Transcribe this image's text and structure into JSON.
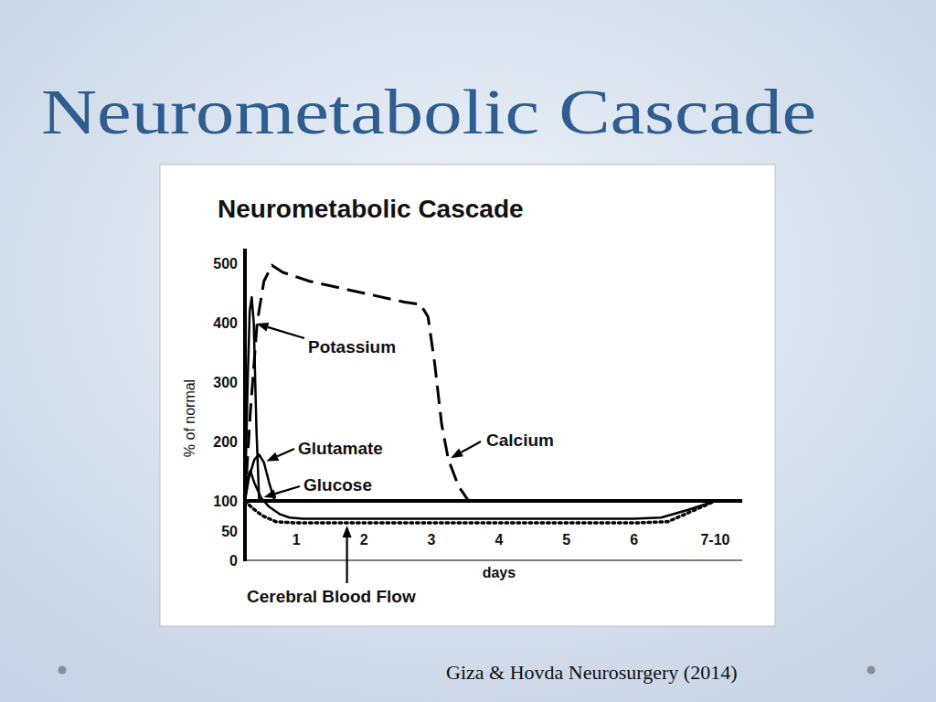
{
  "slide": {
    "title": "Neurometabolic Cascade",
    "citation": "Giza & Hovda Neurosurgery (2014)"
  },
  "chart_data": {
    "type": "line",
    "title": "Neurometabolic Cascade",
    "y_label": "% of normal",
    "x_label": "days",
    "xlim": [
      0.24,
      7.6
    ],
    "xticks": [
      1,
      2,
      3,
      4,
      5,
      6,
      {
        "value": 7.2,
        "label": "7-10"
      }
    ],
    "ylim": [
      0,
      525
    ],
    "yticks": [
      0,
      50,
      100,
      200,
      300,
      400,
      500
    ],
    "grid": false,
    "tick_labels": true,
    "baseline": 100,
    "series": [
      {
        "name": "Potassium",
        "color": "#000000",
        "line_style": "solid",
        "x": [
          0.24,
          0.28,
          0.31,
          0.34,
          0.37,
          0.41,
          0.45
        ],
        "values": [
          100,
          300,
          420,
          443,
          400,
          220,
          100
        ]
      },
      {
        "name": "Glutamate",
        "color": "#000000",
        "line_style": "solid",
        "x": [
          0.24,
          0.3,
          0.38,
          0.45,
          0.52,
          0.6,
          0.68
        ],
        "values": [
          100,
          140,
          170,
          178,
          165,
          130,
          100
        ]
      },
      {
        "name": "Glucose",
        "color": "#000000",
        "line_style": "solid",
        "x": [
          0.24,
          0.28,
          0.32,
          0.38,
          0.48,
          0.6,
          0.75,
          0.9,
          1.1,
          2,
          3,
          4,
          5,
          6,
          6.4,
          6.8,
          7.2
        ],
        "values": [
          100,
          140,
          151,
          130,
          105,
          90,
          78,
          72,
          70,
          70,
          70,
          70,
          70,
          70,
          72,
          85,
          100
        ]
      },
      {
        "name": "Calcium",
        "color": "#000000",
        "line_style": "dashed",
        "x": [
          0.24,
          0.32,
          0.42,
          0.52,
          0.64,
          0.8,
          1.2,
          2,
          2.6,
          2.84,
          2.95,
          3.05,
          3.15,
          3.25,
          3.4,
          3.55
        ],
        "values": [
          100,
          250,
          400,
          470,
          497,
          485,
          470,
          450,
          435,
          431,
          410,
          330,
          230,
          170,
          125,
          100
        ]
      },
      {
        "name": "Cerebral Blood Flow",
        "color": "#000000",
        "line_style": "dotted",
        "x": [
          0.24,
          0.35,
          0.5,
          0.7,
          1,
          1.75,
          2,
          3,
          4,
          5,
          6,
          6.5,
          6.9,
          7.2
        ],
        "values": [
          100,
          88,
          75,
          65,
          63,
          63,
          63,
          63,
          63,
          63,
          63,
          65,
          85,
          100
        ]
      }
    ]
  }
}
